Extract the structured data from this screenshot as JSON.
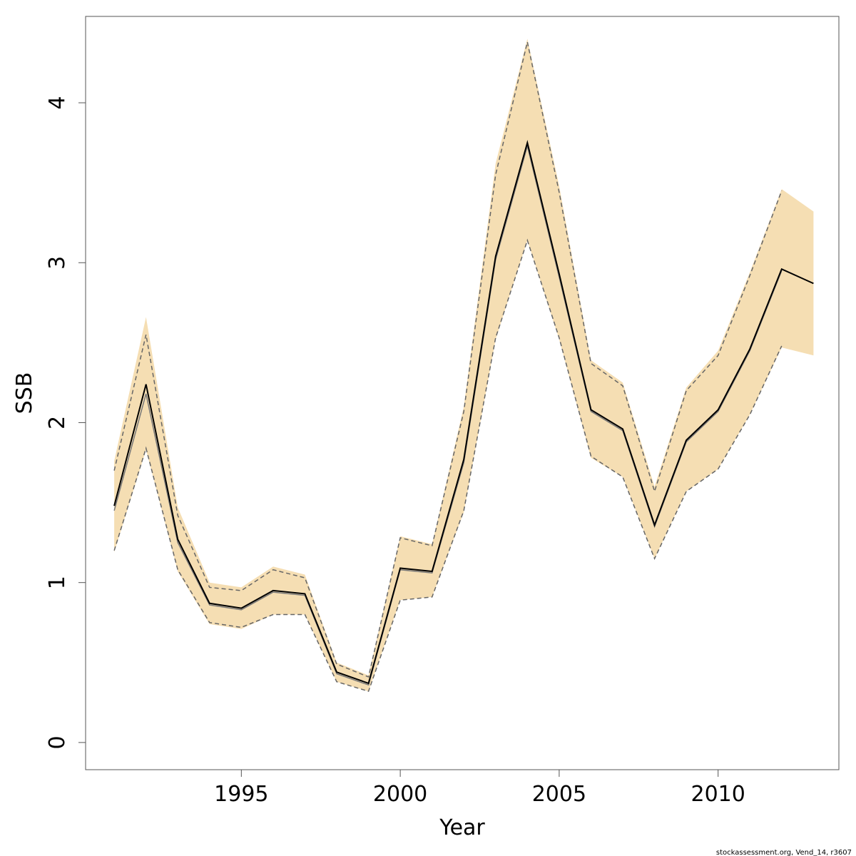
{
  "chart_data": {
    "type": "line",
    "xlabel": "Year",
    "ylabel": "SSB",
    "xlim": [
      1990.1,
      2013.8
    ],
    "ylim": [
      -0.17,
      4.54
    ],
    "x_ticks": [
      1995,
      2000,
      2005,
      2010
    ],
    "y_ticks": [
      0,
      1,
      2,
      3,
      4
    ],
    "grid": false,
    "band_color": "#F5DEB3",
    "line_color": "#000000",
    "bound_color": "#666666",
    "series": [
      {
        "x": [
          1991,
          1992,
          1993,
          1994,
          1995,
          1996,
          1997,
          1998,
          1999,
          2000,
          2001,
          2002,
          2003,
          2004,
          2005,
          2006,
          2007,
          2008,
          2009,
          2010,
          2011,
          2012,
          2013
        ],
        "values": [
          1.48,
          2.24,
          1.27,
          0.87,
          0.84,
          0.95,
          0.93,
          0.44,
          0.37,
          1.09,
          1.07,
          1.77,
          3.04,
          3.75,
          2.93,
          2.08,
          1.96,
          1.36,
          1.89,
          2.08,
          2.46,
          2.96,
          2.87
        ]
      },
      {
        "x": [
          1991,
          1992,
          1993,
          1994,
          1995,
          1996,
          1997,
          1998,
          1999,
          2000,
          2001,
          2002,
          2003,
          2004,
          2005,
          2006,
          2007,
          2008,
          2009,
          2010,
          2011,
          2012
        ],
        "values": [
          1.45,
          2.18,
          1.25,
          0.86,
          0.83,
          0.94,
          0.92,
          0.43,
          0.36,
          1.08,
          1.06,
          1.75,
          3.02,
          3.73,
          2.91,
          2.07,
          1.95,
          1.35,
          1.88,
          2.07,
          2.45,
          2.95
        ]
      },
      {
        "x": [
          1991,
          1992,
          1993,
          1994,
          1995,
          1996,
          1997,
          1998,
          1999,
          2000,
          2001,
          2002,
          2003,
          2004,
          2005,
          2006,
          2007,
          2008,
          2009,
          2010,
          2011,
          2012,
          2013
        ],
        "values": [
          1.76,
          2.66,
          1.47,
          1.0,
          0.97,
          1.1,
          1.05,
          0.5,
          0.42,
          1.29,
          1.24,
          2.1,
          3.62,
          4.4,
          3.48,
          2.39,
          2.25,
          1.6,
          2.22,
          2.45,
          2.94,
          3.46,
          3.32
        ]
      },
      {
        "x": [
          1991,
          1992,
          1993,
          1994,
          1995,
          1996,
          1997,
          1998,
          1999,
          2000,
          2001,
          2002,
          2003,
          2004,
          2005,
          2006,
          2007,
          2008,
          2009,
          2010,
          2011,
          2012,
          2013
        ],
        "values": [
          1.19,
          1.83,
          1.07,
          0.74,
          0.71,
          0.8,
          0.8,
          0.38,
          0.32,
          0.89,
          0.91,
          1.44,
          2.52,
          3.14,
          2.52,
          1.78,
          1.66,
          1.15,
          1.57,
          1.71,
          2.05,
          2.47,
          2.42
        ]
      }
    ],
    "dashed_upper": [
      1.7,
      2.55,
      1.42,
      0.97,
      0.95,
      1.08,
      1.03,
      0.49,
      0.41,
      1.28,
      1.23,
      2.07,
      3.55,
      4.38,
      3.44,
      2.37,
      2.23,
      1.57,
      2.2,
      2.42,
      2.92,
      3.45
    ],
    "dashed_lower": [
      1.2,
      1.84,
      1.08,
      0.75,
      0.72,
      0.8,
      0.8,
      0.38,
      0.32,
      0.89,
      0.91,
      1.45,
      2.53,
      3.14,
      2.53,
      1.79,
      1.66,
      1.15,
      1.57,
      1.71,
      2.05,
      2.48
    ]
  },
  "footer": "stockassessment.org, Vend_14, r3607"
}
